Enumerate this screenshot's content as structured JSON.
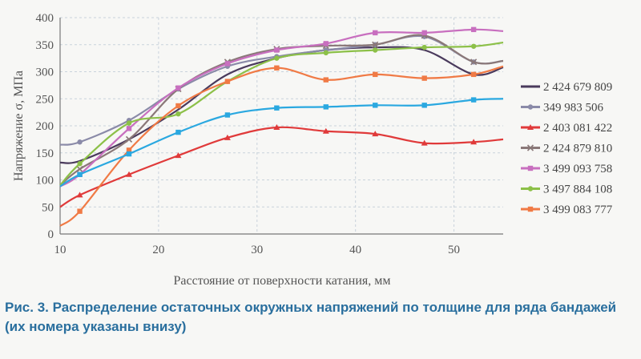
{
  "caption": "Рис. 3. Распределение остаточных окружных напряжений по толщине для ряда бандажей (их номера указаны внизу)",
  "chart_data": {
    "type": "line",
    "xlabel": "Расстояние от поверхности катания, мм",
    "ylabel": "Напряжение σ, МПа",
    "xlim": [
      10,
      55
    ],
    "ylim": [
      0,
      400
    ],
    "xticks": [
      10,
      20,
      30,
      40,
      50
    ],
    "yticks": [
      0,
      50,
      100,
      150,
      200,
      250,
      300,
      350,
      400
    ],
    "grid": true,
    "legend_position": "right",
    "series": [
      {
        "name": "2 424 679 809",
        "color": "#4a3a5c",
        "marker": "none",
        "x": [
          10,
          12,
          17,
          22,
          27,
          32,
          37,
          42,
          47,
          52,
          55
        ],
        "y": [
          132,
          135,
          175,
          230,
          295,
          325,
          340,
          345,
          340,
          295,
          308
        ]
      },
      {
        "name": "349 983 506",
        "color": "#8a8aa8",
        "marker": "circle",
        "x": [
          10,
          12,
          17,
          22,
          27,
          32,
          37,
          42,
          47,
          52,
          55
        ],
        "y": [
          165,
          170,
          210,
          268,
          310,
          328,
          340,
          350,
          365,
          318,
          320
        ]
      },
      {
        "name": "2 403 081 422",
        "color": "#e03a3a",
        "marker": "triangle",
        "x": [
          10,
          12,
          17,
          22,
          27,
          32,
          37,
          42,
          47,
          52,
          55
        ],
        "y": [
          50,
          72,
          110,
          145,
          178,
          197,
          190,
          185,
          168,
          170,
          175
        ]
      },
      {
        "name": "2 424 879 810",
        "color": "#8a7878",
        "marker": "x",
        "x": [
          10,
          12,
          17,
          22,
          27,
          32,
          37,
          42,
          47,
          52,
          55
        ],
        "y": [
          90,
          120,
          175,
          268,
          318,
          342,
          348,
          350,
          367,
          318,
          320
        ]
      },
      {
        "name": "3 499 093 758",
        "color": "#c86fbf",
        "marker": "square",
        "x": [
          10,
          12,
          17,
          22,
          27,
          32,
          37,
          42,
          47,
          52,
          55
        ],
        "y": [
          88,
          110,
          195,
          270,
          315,
          340,
          352,
          372,
          372,
          378,
          375
        ]
      },
      {
        "name": "3 497 884 108",
        "color": "#8cc048",
        "marker": "circle",
        "x": [
          10,
          12,
          17,
          22,
          27,
          32,
          37,
          42,
          47,
          52,
          55
        ],
        "y": [
          90,
          130,
          205,
          222,
          282,
          325,
          335,
          340,
          345,
          347,
          354
        ]
      },
      {
        "name": "3 499 083 777",
        "color": "#f07a45",
        "marker": "square",
        "x": [
          10,
          12,
          17,
          22,
          27,
          32,
          37,
          42,
          47,
          52,
          55
        ],
        "y": [
          15,
          42,
          155,
          237,
          282,
          307,
          285,
          295,
          288,
          295,
          310
        ]
      },
      {
        "name": "",
        "color": "#2aa8e0",
        "marker": "square",
        "x": [
          10,
          12,
          17,
          22,
          27,
          32,
          37,
          42,
          47,
          52,
          55
        ],
        "y": [
          88,
          110,
          148,
          188,
          220,
          233,
          235,
          238,
          238,
          248,
          250
        ]
      }
    ]
  }
}
